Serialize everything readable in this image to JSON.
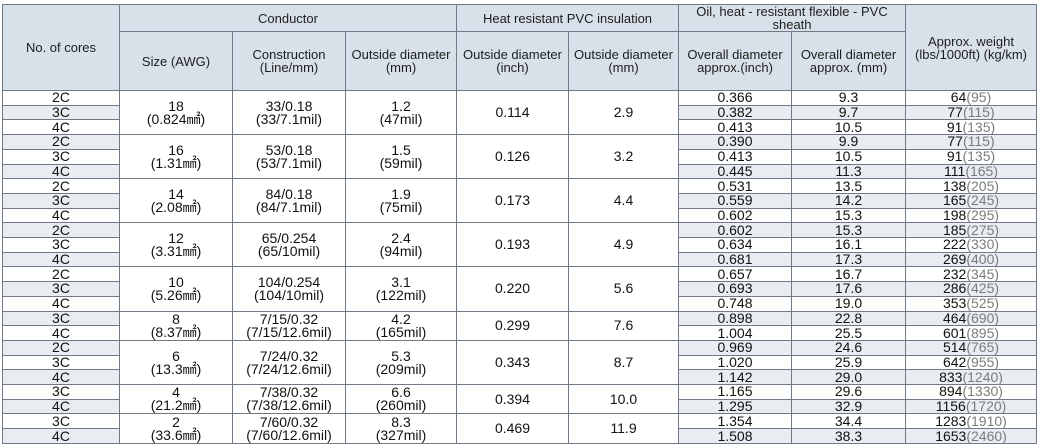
{
  "headers": {
    "cores": "No. of cores",
    "conductor": "Conductor",
    "insulation": "Heat resistant PVC insulation",
    "sheath": "Oil, heat - resistant flexible - PVC sheath",
    "weight": "Approx. weight (lbs/1000ft) (kg/km)",
    "size": "Size (AWG)",
    "construction": "Construction (Line/mm)",
    "conductor_od": "Outside diameter (mm)",
    "ins_od_inch": "Outside diameter (inch)",
    "ins_od_mm": "Outside diameter (mm)",
    "sheath_od_inch": "Overall diameter approx.(inch)",
    "sheath_od_mm": "Overall diameter approx. (mm)"
  },
  "groups": [
    {
      "awg": "18",
      "area": "(0.824㎟)",
      "construction": "33/0.18",
      "construction_mil": "(33/7.1mil)",
      "od_mm": "1.2",
      "od_mil": "(47mil)",
      "ins_inch": "0.114",
      "ins_mm": "2.9",
      "rows": [
        {
          "cores": "2C",
          "od_inch": "0.366",
          "od_mm": "9.3",
          "lbs": "64",
          "kg": "(95)"
        },
        {
          "cores": "3C",
          "od_inch": "0.382",
          "od_mm": "9.7",
          "lbs": "77",
          "kg": "(115)"
        },
        {
          "cores": "4C",
          "od_inch": "0.413",
          "od_mm": "10.5",
          "lbs": "91",
          "kg": "(135)"
        }
      ]
    },
    {
      "awg": "16",
      "area": "(1.31㎟)",
      "construction": "53/0.18",
      "construction_mil": "(53/7.1mil)",
      "od_mm": "1.5",
      "od_mil": "(59mil)",
      "ins_inch": "0.126",
      "ins_mm": "3.2",
      "rows": [
        {
          "cores": "2C",
          "od_inch": "0.390",
          "od_mm": "9.9",
          "lbs": "77",
          "kg": "(115)"
        },
        {
          "cores": "3C",
          "od_inch": "0.413",
          "od_mm": "10.5",
          "lbs": "91",
          "kg": "(135)"
        },
        {
          "cores": "4C",
          "od_inch": "0.445",
          "od_mm": "11.3",
          "lbs": "111",
          "kg": "(165)"
        }
      ]
    },
    {
      "awg": "14",
      "area": "(2.08㎟)",
      "construction": "84/0.18",
      "construction_mil": "(84/7.1mil)",
      "od_mm": "1.9",
      "od_mil": "(75mil)",
      "ins_inch": "0.173",
      "ins_mm": "4.4",
      "rows": [
        {
          "cores": "2C",
          "od_inch": "0.531",
          "od_mm": "13.5",
          "lbs": "138",
          "kg": "(205)"
        },
        {
          "cores": "3C",
          "od_inch": "0.559",
          "od_mm": "14.2",
          "lbs": "165",
          "kg": "(245)"
        },
        {
          "cores": "4C",
          "od_inch": "0.602",
          "od_mm": "15.3",
          "lbs": "198",
          "kg": "(295)"
        }
      ]
    },
    {
      "awg": "12",
      "area": "(3.31㎟)",
      "construction": "65/0.254",
      "construction_mil": "(65/10mil)",
      "od_mm": "2.4",
      "od_mil": "(94mil)",
      "ins_inch": "0.193",
      "ins_mm": "4.9",
      "rows": [
        {
          "cores": "2C",
          "od_inch": "0.602",
          "od_mm": "15.3",
          "lbs": "185",
          "kg": "(275)"
        },
        {
          "cores": "3C",
          "od_inch": "0.634",
          "od_mm": "16.1",
          "lbs": "222",
          "kg": "(330)"
        },
        {
          "cores": "4C",
          "od_inch": "0.681",
          "od_mm": "17.3",
          "lbs": "269",
          "kg": "(400)"
        }
      ]
    },
    {
      "awg": "10",
      "area": "(5.26㎟)",
      "construction": "104/0.254",
      "construction_mil": "(104/10mil)",
      "od_mm": "3.1",
      "od_mil": "(122mil)",
      "ins_inch": "0.220",
      "ins_mm": "5.6",
      "rows": [
        {
          "cores": "2C",
          "od_inch": "0.657",
          "od_mm": "16.7",
          "lbs": "232",
          "kg": "(345)"
        },
        {
          "cores": "3C",
          "od_inch": "0.693",
          "od_mm": "17.6",
          "lbs": "286",
          "kg": "(425)"
        },
        {
          "cores": "4C",
          "od_inch": "0.748",
          "od_mm": "19.0",
          "lbs": "353",
          "kg": "(525)"
        }
      ]
    },
    {
      "awg": "8",
      "area": "(8.37㎟)",
      "construction": "7/15/0.32",
      "construction_mil": "(7/15/12.6mil)",
      "od_mm": "4.2",
      "od_mil": "(165mil)",
      "ins_inch": "0.299",
      "ins_mm": "7.6",
      "rows": [
        {
          "cores": "3C",
          "od_inch": "0.898",
          "od_mm": "22.8",
          "lbs": "464",
          "kg": "(690)"
        },
        {
          "cores": "4C",
          "od_inch": "1.004",
          "od_mm": "25.5",
          "lbs": "601",
          "kg": "(895)"
        }
      ]
    },
    {
      "awg": "6",
      "area": "(13.3㎟)",
      "construction": "7/24/0.32",
      "construction_mil": "(7/24/12.6mil)",
      "od_mm": "5.3",
      "od_mil": "(209mil)",
      "ins_inch": "0.343",
      "ins_mm": "8.7",
      "rows": [
        {
          "cores": "2C",
          "od_inch": "0.969",
          "od_mm": "24.6",
          "lbs": "514",
          "kg": "(765)"
        },
        {
          "cores": "3C",
          "od_inch": "1.020",
          "od_mm": "25.9",
          "lbs": "642",
          "kg": "(955)"
        },
        {
          "cores": "4C",
          "od_inch": "1.142",
          "od_mm": "29.0",
          "lbs": "833",
          "kg": "(1240)"
        }
      ]
    },
    {
      "awg": "4",
      "area": "(21.2㎟)",
      "construction": "7/38/0.32",
      "construction_mil": "(7/38/12.6mil)",
      "od_mm": "6.6",
      "od_mil": "(260mil)",
      "ins_inch": "0.394",
      "ins_mm": "10.0",
      "rows": [
        {
          "cores": "3C",
          "od_inch": "1.165",
          "od_mm": "29.6",
          "lbs": "894",
          "kg": "(1330)"
        },
        {
          "cores": "4C",
          "od_inch": "1.295",
          "od_mm": "32.9",
          "lbs": "1156",
          "kg": "(1720)"
        }
      ]
    },
    {
      "awg": "2",
      "area": "(33.6㎟)",
      "construction": "7/60/0.32",
      "construction_mil": "(7/60/12.6mil)",
      "od_mm": "8.3",
      "od_mil": "(327mil)",
      "ins_inch": "0.469",
      "ins_mm": "11.9",
      "rows": [
        {
          "cores": "3C",
          "od_inch": "1.354",
          "od_mm": "34.4",
          "lbs": "1283",
          "kg": "(1910)"
        },
        {
          "cores": "4C",
          "od_inch": "1.508",
          "od_mm": "38.3",
          "lbs": "1653",
          "kg": "(2460)"
        }
      ]
    }
  ]
}
